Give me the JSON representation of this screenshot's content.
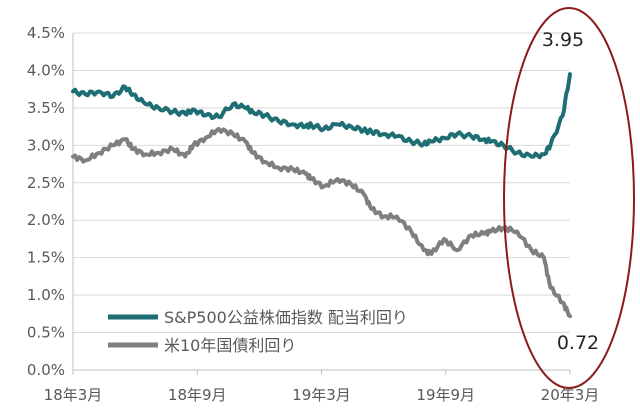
{
  "chart_data": {
    "type": "line",
    "ylim": [
      0,
      4.5
    ],
    "y_ticks": [
      "0.0%",
      "0.5%",
      "1.0%",
      "1.5%",
      "2.0%",
      "2.5%",
      "3.0%",
      "3.5%",
      "4.0%",
      "4.5%"
    ],
    "x_ticks": [
      "18年3月",
      "18年9月",
      "19年3月",
      "19年9月",
      "20年3月"
    ],
    "grid": "horizontal",
    "legend_position": "lower-left",
    "series": [
      {
        "name": "S&P500公益株価指数 配当利回り",
        "color": "#1F6E74",
        "x": [
          "2018-03-01",
          "2018-03-20",
          "2018-04-10",
          "2018-05-01",
          "2018-05-20",
          "2018-06-01",
          "2018-06-20",
          "2018-07-10",
          "2018-08-01",
          "2018-08-20",
          "2018-09-01",
          "2018-09-20",
          "2018-10-10",
          "2018-11-01",
          "2018-11-20",
          "2018-12-01",
          "2018-12-20",
          "2019-01-10",
          "2019-02-01",
          "2019-02-20",
          "2019-03-01",
          "2019-03-20",
          "2019-04-10",
          "2019-05-01",
          "2019-05-20",
          "2019-06-01",
          "2019-06-20",
          "2019-07-10",
          "2019-08-01",
          "2019-08-20",
          "2019-09-01",
          "2019-09-20",
          "2019-10-10",
          "2019-11-01",
          "2019-11-20",
          "2019-12-01",
          "2019-12-20",
          "2020-01-10",
          "2020-02-01",
          "2020-02-20",
          "2020-03-01",
          "2020-03-20",
          "2020-03-31"
        ],
        "values": [
          3.72,
          3.68,
          3.72,
          3.65,
          3.78,
          3.68,
          3.55,
          3.5,
          3.45,
          3.42,
          3.48,
          3.4,
          3.38,
          3.55,
          3.5,
          3.45,
          3.4,
          3.32,
          3.28,
          3.25,
          3.27,
          3.22,
          3.28,
          3.25,
          3.2,
          3.18,
          3.15,
          3.12,
          3.05,
          3.02,
          3.05,
          3.1,
          3.15,
          3.12,
          3.08,
          3.05,
          3.0,
          2.9,
          2.85,
          2.88,
          3.0,
          3.4,
          3.95
        ],
        "end_label": "3.95"
      },
      {
        "name": "米10年国債利回り",
        "color": "#7F7F7F",
        "x": [
          "2018-03-01",
          "2018-03-20",
          "2018-04-10",
          "2018-05-01",
          "2018-05-20",
          "2018-06-01",
          "2018-06-20",
          "2018-07-10",
          "2018-08-01",
          "2018-08-20",
          "2018-09-01",
          "2018-09-20",
          "2018-10-10",
          "2018-11-01",
          "2018-11-20",
          "2018-12-01",
          "2018-12-20",
          "2019-01-10",
          "2019-02-01",
          "2019-02-20",
          "2019-03-01",
          "2019-03-20",
          "2019-04-10",
          "2019-05-01",
          "2019-05-20",
          "2019-06-01",
          "2019-06-20",
          "2019-07-10",
          "2019-08-01",
          "2019-08-20",
          "2019-09-01",
          "2019-09-20",
          "2019-10-10",
          "2019-11-01",
          "2019-11-20",
          "2019-12-01",
          "2019-12-20",
          "2020-01-10",
          "2020-02-01",
          "2020-02-20",
          "2020-03-01",
          "2020-03-20",
          "2020-03-31"
        ],
        "values": [
          2.85,
          2.8,
          2.9,
          3.0,
          3.08,
          2.95,
          2.88,
          2.9,
          2.95,
          2.85,
          3.0,
          3.1,
          3.22,
          3.15,
          3.05,
          2.9,
          2.78,
          2.7,
          2.68,
          2.62,
          2.55,
          2.45,
          2.55,
          2.48,
          2.35,
          2.15,
          2.05,
          2.05,
          1.85,
          1.6,
          1.55,
          1.75,
          1.6,
          1.8,
          1.82,
          1.85,
          1.9,
          1.85,
          1.6,
          1.5,
          1.1,
          0.9,
          0.72
        ],
        "end_label": "0.72"
      }
    ]
  }
}
